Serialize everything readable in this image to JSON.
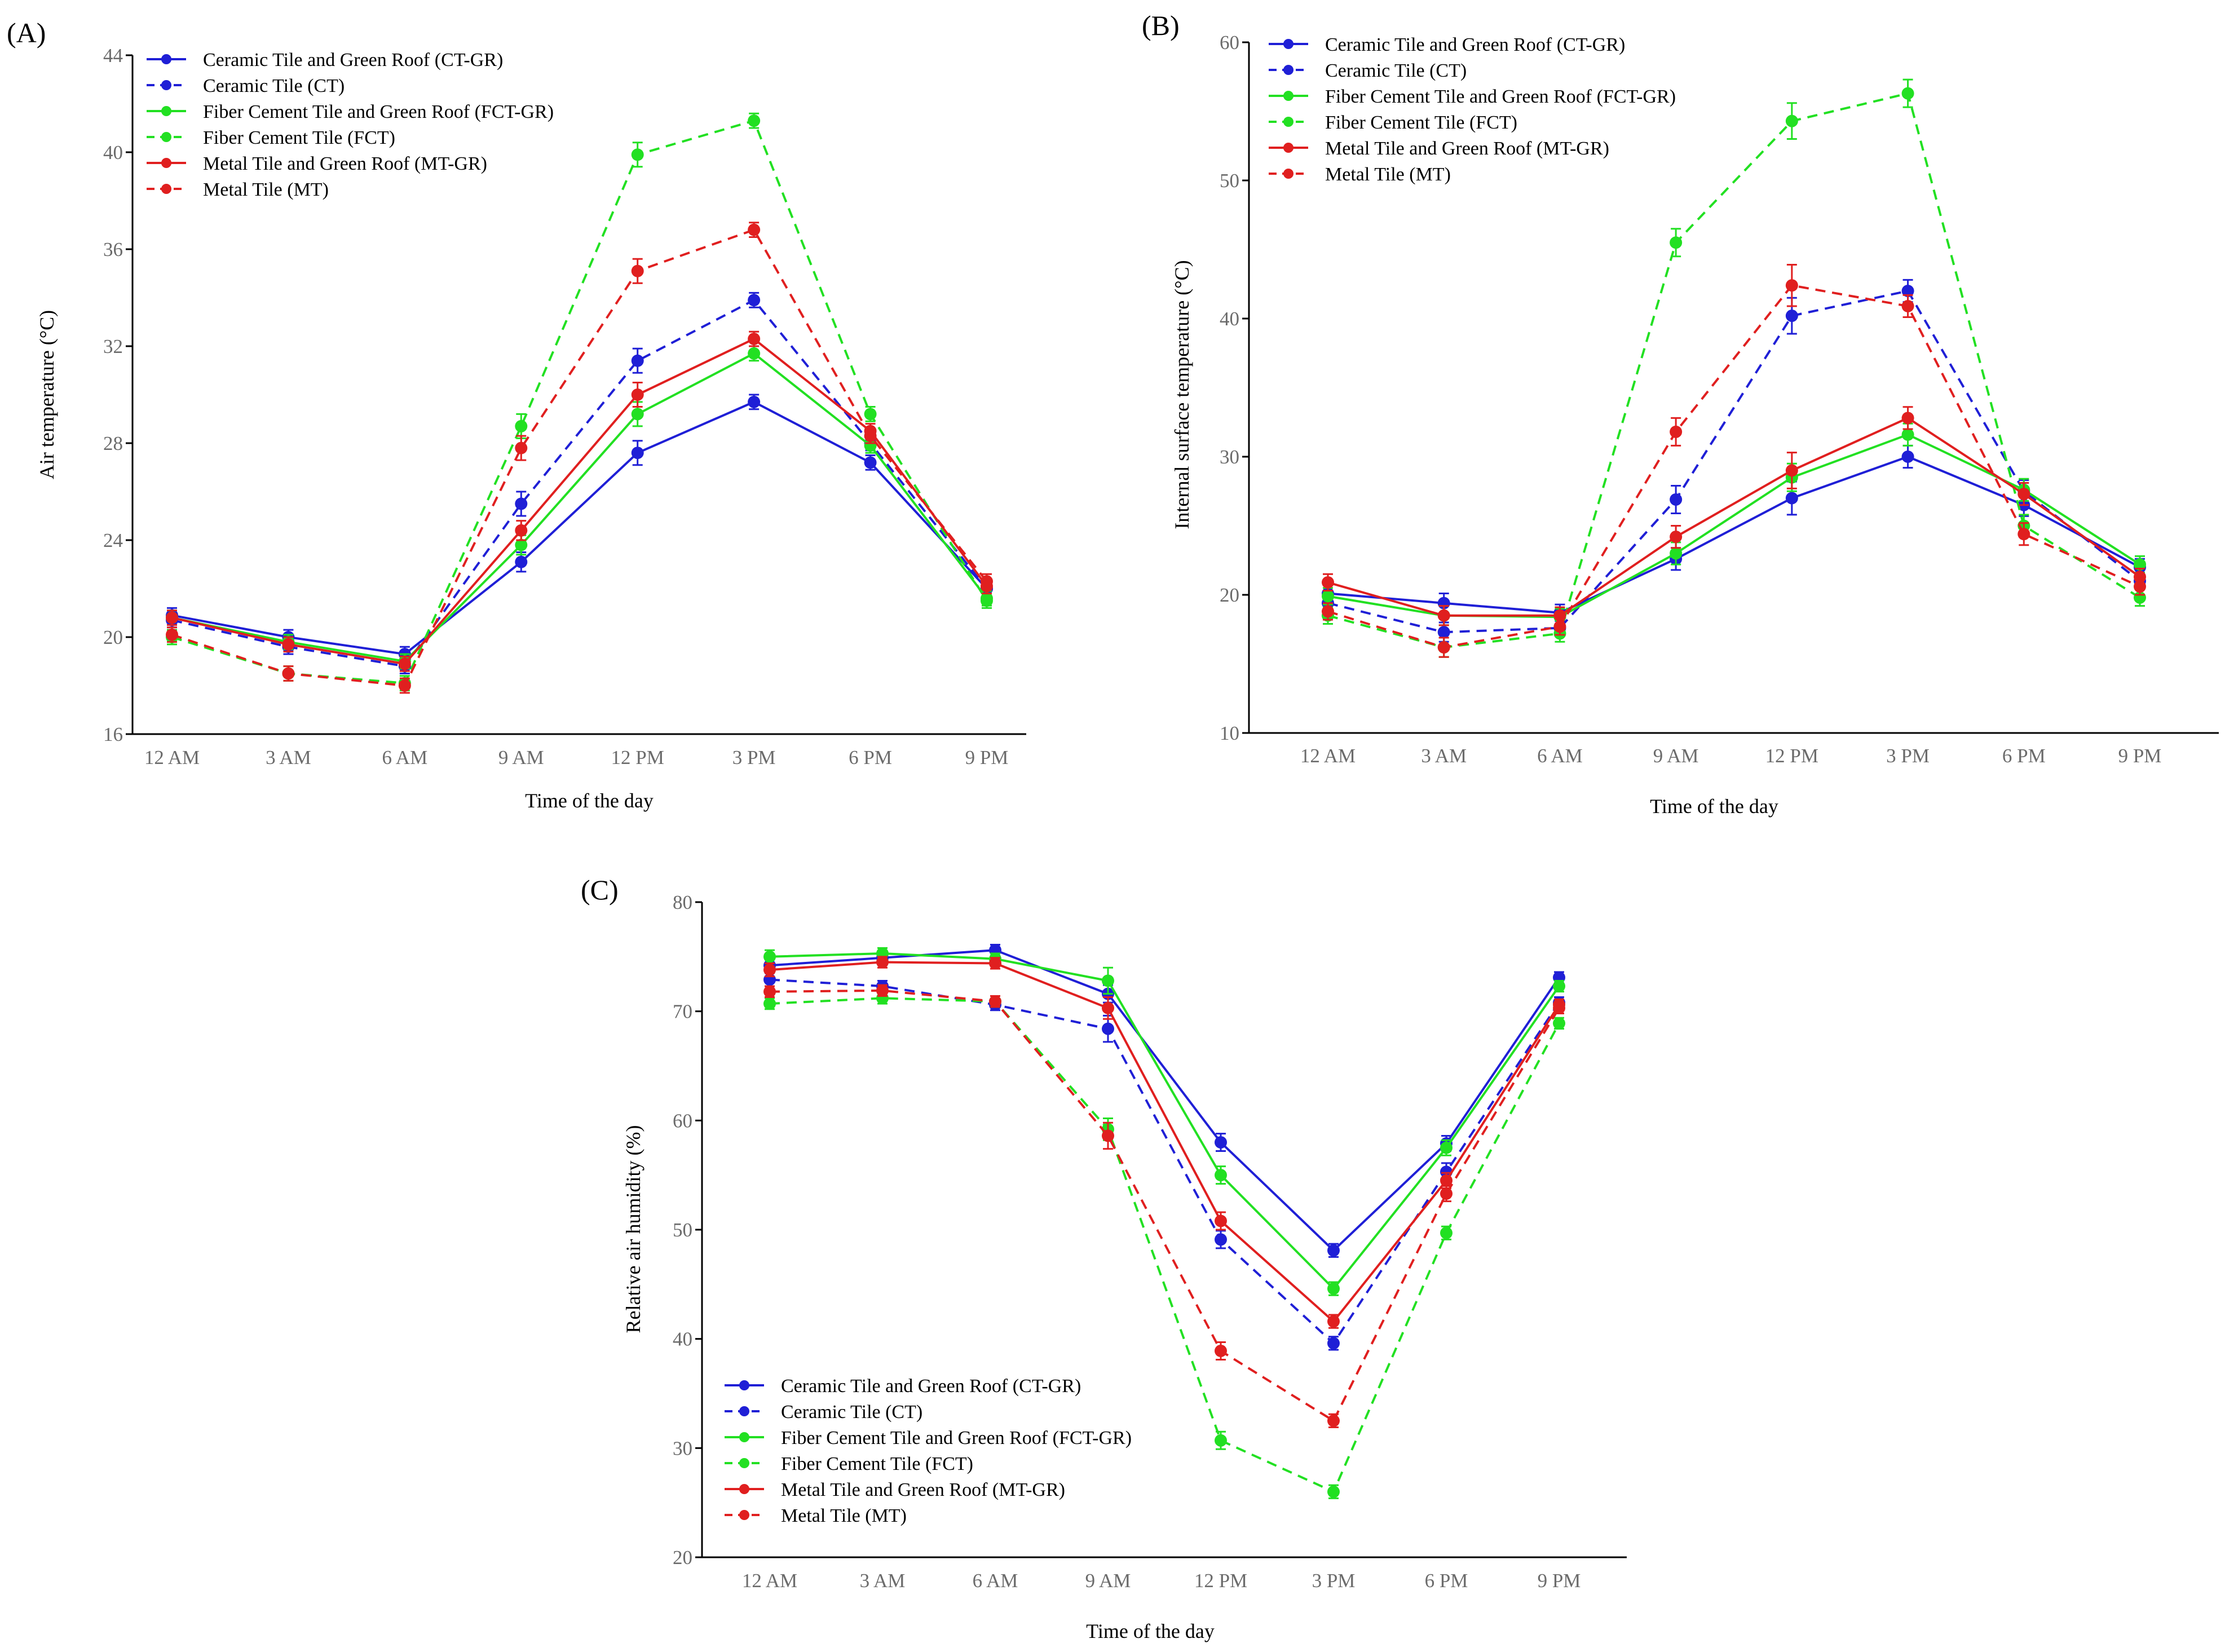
{
  "chart_data": [
    {
      "type": "line",
      "panel_label": "(A)",
      "title": "",
      "xlabel": "Time of  the day",
      "ylabel": "Air temperature (°C)",
      "ylim": [
        16,
        44
      ],
      "yticks": [
        16,
        20,
        24,
        28,
        32,
        36,
        40,
        44
      ],
      "grid": false,
      "legend_position": "top-left",
      "categories": [
        "12 AM",
        "3 AM",
        "6 AM",
        "9 AM",
        "12 PM",
        "3 PM",
        "6 PM",
        "9 PM"
      ],
      "series": [
        {
          "name": "Ceramic Tile and Green Roof (CT-GR)",
          "color": "#1f1fd6",
          "dash": "solid",
          "values": [
            20.9,
            20.0,
            19.3,
            23.1,
            27.6,
            29.7,
            27.2,
            22.0
          ],
          "errors": [
            0.3,
            0.3,
            0.3,
            0.4,
            0.5,
            0.3,
            0.3,
            0.3
          ]
        },
        {
          "name": "Ceramic Tile (CT)",
          "color": "#1f1fd6",
          "dash": "dashed",
          "values": [
            20.7,
            19.6,
            18.8,
            25.5,
            31.4,
            33.9,
            28.0,
            22.0
          ],
          "errors": [
            0.3,
            0.3,
            0.3,
            0.5,
            0.5,
            0.3,
            0.3,
            0.3
          ]
        },
        {
          "name": "Fiber Cement Tile and Green Roof (FCT-GR)",
          "color": "#22e022",
          "dash": "solid",
          "values": [
            20.8,
            19.8,
            19.0,
            23.8,
            29.2,
            31.7,
            27.9,
            21.6
          ],
          "errors": [
            0.3,
            0.3,
            0.3,
            0.4,
            0.5,
            0.3,
            0.3,
            0.3
          ]
        },
        {
          "name": "Fiber Cement Tile (FCT)",
          "color": "#22e022",
          "dash": "dashed",
          "values": [
            20.0,
            18.5,
            18.1,
            28.7,
            39.9,
            41.3,
            29.2,
            21.5
          ],
          "errors": [
            0.3,
            0.3,
            0.3,
            0.5,
            0.5,
            0.3,
            0.3,
            0.3
          ]
        },
        {
          "name": "Metal Tile and Green Roof (MT-GR)",
          "color": "#e01f1f",
          "dash": "solid",
          "values": [
            20.8,
            19.7,
            18.9,
            24.4,
            30.0,
            32.3,
            28.5,
            22.1
          ],
          "errors": [
            0.3,
            0.3,
            0.3,
            0.4,
            0.5,
            0.3,
            0.3,
            0.3
          ]
        },
        {
          "name": "Metal Tile (MT)",
          "color": "#e01f1f",
          "dash": "dashed",
          "values": [
            20.1,
            18.5,
            18.0,
            27.8,
            35.1,
            36.8,
            28.3,
            22.3
          ],
          "errors": [
            0.3,
            0.3,
            0.3,
            0.5,
            0.5,
            0.3,
            0.3,
            0.3
          ]
        }
      ]
    },
    {
      "type": "line",
      "panel_label": "(B)",
      "title": "",
      "xlabel": "Time of  the day",
      "ylabel": "Internal surface temperature (°C)",
      "ylim": [
        10,
        60
      ],
      "yticks": [
        10,
        20,
        30,
        40,
        50,
        60
      ],
      "grid": false,
      "legend_position": "top-left",
      "categories": [
        "12 AM",
        "3 AM",
        "6 AM",
        "9 AM",
        "12 PM",
        "3 PM",
        "6 PM",
        "9 PM"
      ],
      "series": [
        {
          "name": "Ceramic Tile and Green Roof (CT-GR)",
          "color": "#1f1fd6",
          "dash": "solid",
          "values": [
            20.1,
            19.4,
            18.7,
            22.6,
            27.0,
            30.0,
            26.5,
            22.0
          ],
          "errors": [
            0.6,
            0.7,
            0.6,
            0.8,
            1.2,
            0.8,
            0.8,
            0.6
          ]
        },
        {
          "name": "Ceramic Tile (CT)",
          "color": "#1f1fd6",
          "dash": "dashed",
          "values": [
            19.4,
            17.3,
            17.6,
            26.9,
            40.2,
            42.0,
            27.5,
            21.0
          ],
          "errors": [
            0.6,
            0.7,
            0.6,
            1.0,
            1.3,
            0.8,
            0.8,
            0.6
          ]
        },
        {
          "name": "Fiber Cement Tile and Green Roof (FCT-GR)",
          "color": "#22e022",
          "dash": "solid",
          "values": [
            19.9,
            18.5,
            18.4,
            23.0,
            28.5,
            31.6,
            27.6,
            22.2
          ],
          "errors": [
            0.6,
            0.7,
            0.6,
            0.8,
            1.0,
            0.8,
            0.8,
            0.6
          ]
        },
        {
          "name": "Fiber Cement Tile (FCT)",
          "color": "#22e022",
          "dash": "dashed",
          "values": [
            18.5,
            16.2,
            17.2,
            45.5,
            54.3,
            56.3,
            25.0,
            19.8
          ],
          "errors": [
            0.6,
            0.7,
            0.6,
            1.0,
            1.3,
            1.0,
            0.8,
            0.6
          ]
        },
        {
          "name": "Metal Tile and Green Roof (MT-GR)",
          "color": "#e01f1f",
          "dash": "solid",
          "values": [
            20.9,
            18.5,
            18.5,
            24.2,
            29.0,
            32.8,
            27.3,
            21.3
          ],
          "errors": [
            0.6,
            0.7,
            0.6,
            0.8,
            1.3,
            0.8,
            0.8,
            0.6
          ]
        },
        {
          "name": "Metal Tile (MT)",
          "color": "#e01f1f",
          "dash": "dashed",
          "values": [
            18.8,
            16.2,
            17.7,
            31.8,
            42.4,
            40.9,
            24.4,
            20.6
          ],
          "errors": [
            0.6,
            0.7,
            0.6,
            1.0,
            1.5,
            0.8,
            0.8,
            0.6
          ]
        }
      ]
    },
    {
      "type": "line",
      "panel_label": "(C)",
      "title": "",
      "xlabel": "Time of  the day",
      "ylabel": "Relative air humidity (%)",
      "ylim": [
        20,
        80
      ],
      "yticks": [
        20,
        30,
        40,
        50,
        60,
        70,
        80
      ],
      "grid": false,
      "legend_position": "bottom-left",
      "categories": [
        "12 AM",
        "3 AM",
        "6 AM",
        "9 AM",
        "12 PM",
        "3 PM",
        "6 PM",
        "9 PM"
      ],
      "series": [
        {
          "name": "Ceramic Tile and Green Roof (CT-GR)",
          "color": "#1f1fd6",
          "dash": "solid",
          "values": [
            74.2,
            74.9,
            75.6,
            71.6,
            58.0,
            48.1,
            57.9,
            73.1
          ],
          "errors": [
            0.6,
            0.5,
            0.5,
            0.8,
            0.8,
            0.6,
            0.7,
            0.5
          ]
        },
        {
          "name": "Ceramic Tile (CT)",
          "color": "#1f1fd6",
          "dash": "dashed",
          "values": [
            72.9,
            72.3,
            70.6,
            68.4,
            49.1,
            39.6,
            55.3,
            70.8
          ],
          "errors": [
            0.6,
            0.5,
            0.5,
            1.2,
            0.8,
            0.6,
            0.8,
            0.5
          ]
        },
        {
          "name": "Fiber Cement Tile and Green Roof (FCT-GR)",
          "color": "#22e022",
          "dash": "solid",
          "values": [
            75.0,
            75.3,
            74.8,
            72.8,
            55.0,
            44.6,
            57.5,
            72.3
          ],
          "errors": [
            0.6,
            0.5,
            0.5,
            1.2,
            0.8,
            0.6,
            0.7,
            0.5
          ]
        },
        {
          "name": "Fiber Cement Tile (FCT)",
          "color": "#22e022",
          "dash": "dashed",
          "values": [
            70.7,
            71.2,
            70.9,
            59.2,
            30.7,
            26.0,
            49.7,
            68.9
          ],
          "errors": [
            0.5,
            0.5,
            0.5,
            1.0,
            0.8,
            0.6,
            0.6,
            0.5
          ]
        },
        {
          "name": "Metal Tile and Green Roof (MT-GR)",
          "color": "#e01f1f",
          "dash": "solid",
          "values": [
            73.8,
            74.5,
            74.4,
            70.3,
            50.8,
            41.6,
            54.5,
            70.6
          ],
          "errors": [
            0.6,
            0.5,
            0.5,
            1.0,
            0.8,
            0.6,
            0.7,
            0.5
          ]
        },
        {
          "name": "Metal Tile (MT)",
          "color": "#e01f1f",
          "dash": "dashed",
          "values": [
            71.8,
            71.9,
            70.9,
            58.6,
            38.9,
            32.5,
            53.3,
            70.3
          ],
          "errors": [
            0.5,
            0.5,
            0.5,
            1.2,
            0.8,
            0.6,
            0.7,
            0.5
          ]
        }
      ]
    }
  ]
}
